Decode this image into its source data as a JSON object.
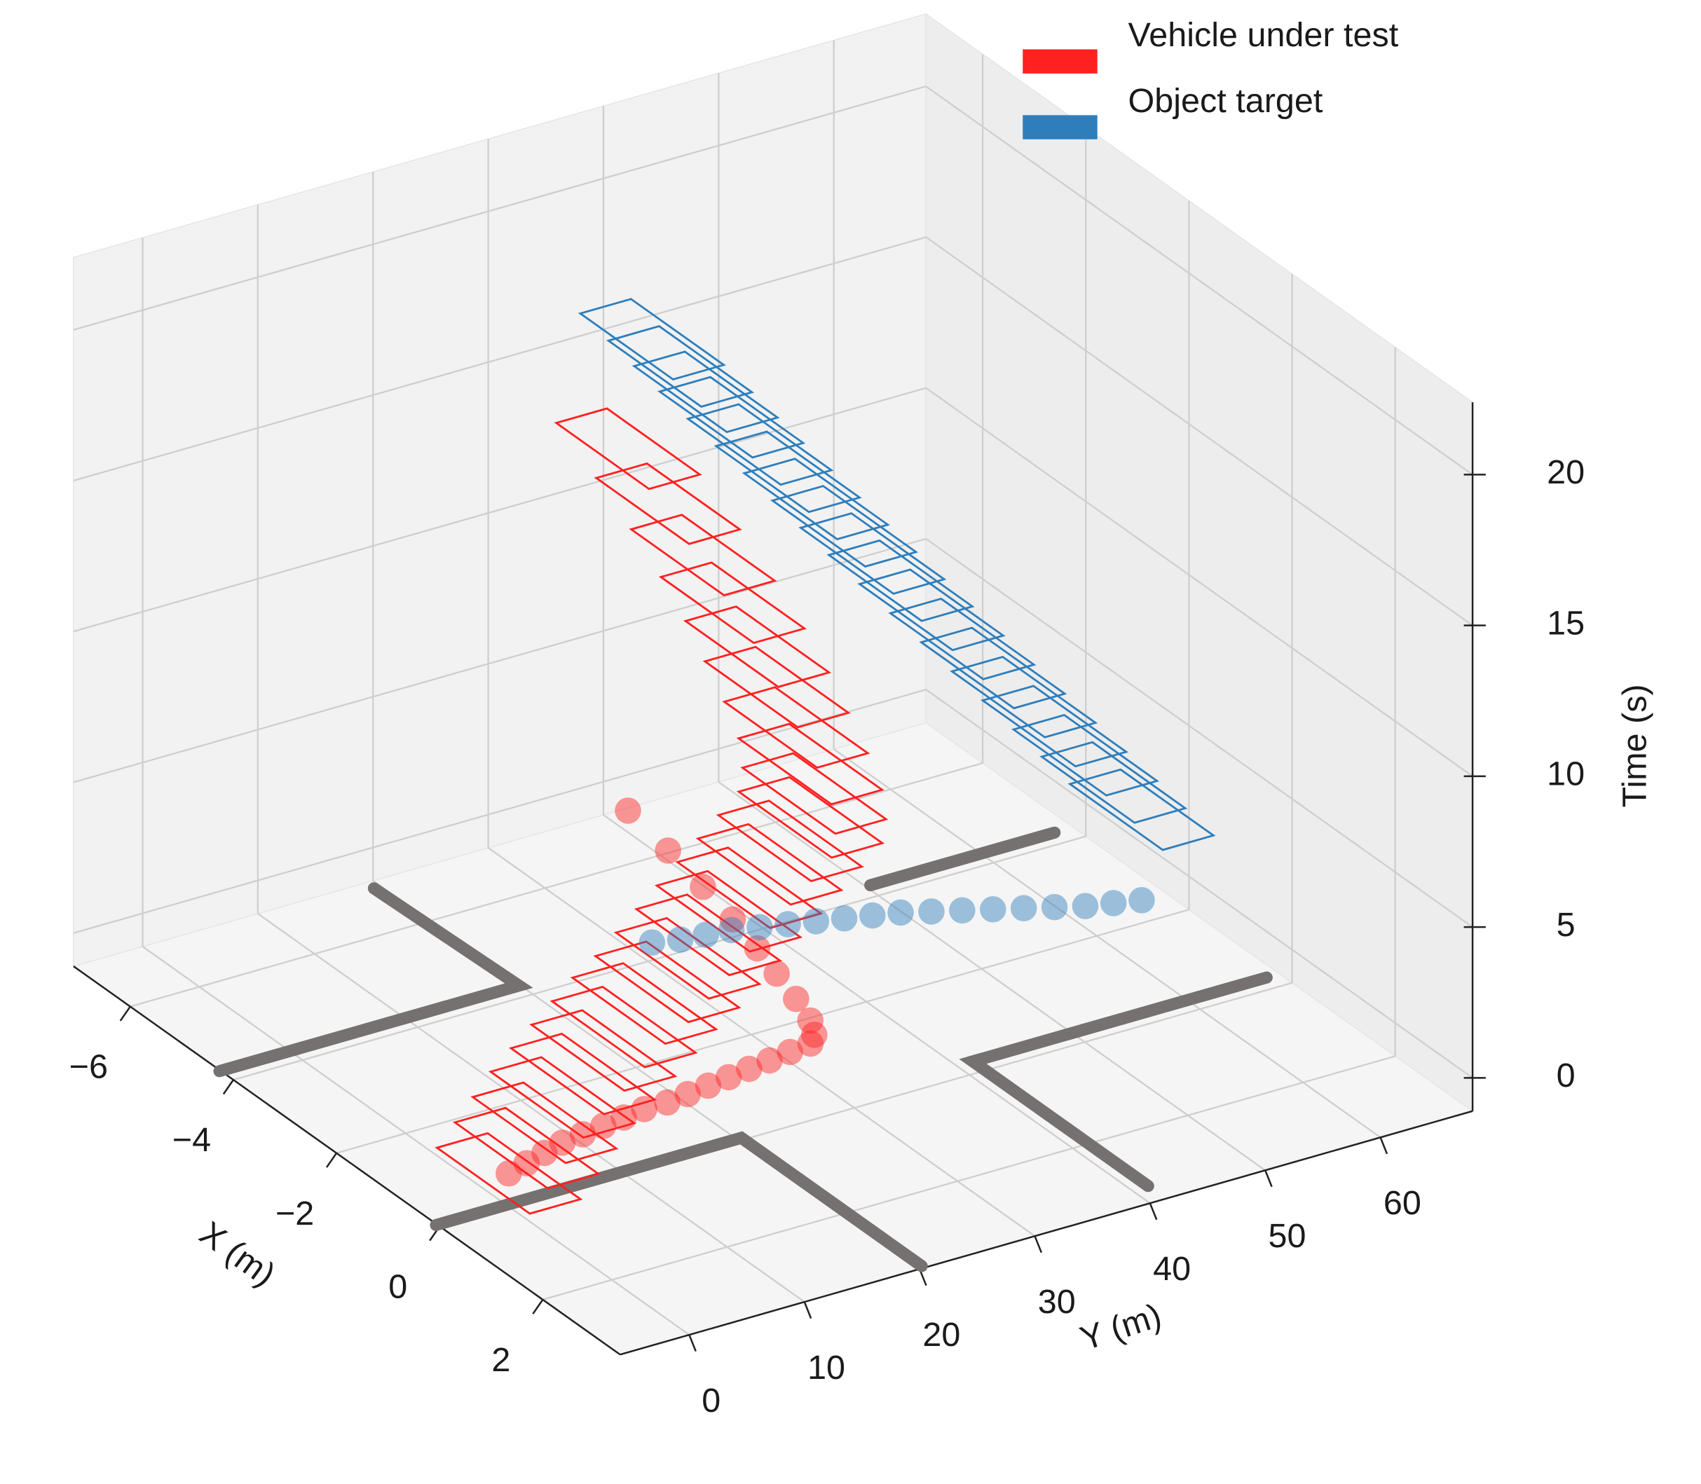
{
  "chart_data": {
    "type": "scatter3d",
    "xlabel": "X (m)",
    "ylabel": "Y (m)",
    "zlabel": "Time (s)",
    "xlim": [
      -7.1,
      3.5
    ],
    "ylim": [
      -6,
      68
    ],
    "zlim": [
      -1.1,
      22.4
    ],
    "xticks": [
      {
        "value": -6,
        "label": "−6"
      },
      {
        "value": -4,
        "label": "−4"
      },
      {
        "value": -2,
        "label": "−2"
      },
      0,
      2
    ],
    "yticks": [
      0,
      10,
      20,
      30,
      40,
      50,
      60
    ],
    "zticks": [
      0,
      5,
      10,
      15,
      20
    ],
    "grid": true,
    "legend": "upper right",
    "series": [
      {
        "name": "Vehicle under test",
        "color": "#ff2020",
        "x": [
          0,
          -0.1,
          -0.2,
          -0.3,
          -0.35,
          -0.4,
          -0.45,
          -0.5,
          -0.5,
          -0.55,
          -0.6,
          -0.65,
          -0.7,
          -0.75,
          -0.8,
          -0.85,
          -1.0,
          -1.3,
          -1.8,
          -2.4,
          -3.0,
          -3.7,
          -4.5,
          -5.4,
          -6.4
        ],
        "y": [
          0,
          2,
          4,
          6,
          8,
          10,
          12,
          14,
          16,
          18,
          20,
          22,
          24,
          26,
          28,
          30,
          31,
          32,
          33,
          34,
          35,
          36,
          37,
          38,
          39
        ],
        "t": [
          0,
          0.5,
          1,
          1.5,
          2,
          2.5,
          3,
          3.5,
          4,
          4.5,
          5,
          5.5,
          6,
          6.5,
          7,
          7.5,
          8,
          8.5,
          9,
          9.5,
          10,
          10.5,
          11,
          11.5,
          12
        ]
      },
      {
        "name": "Object target",
        "color": "#2e7ebc",
        "x": [
          -1.8,
          -1.9,
          -2.0,
          -2.15,
          -2.3,
          -2.45,
          -2.6,
          -2.75,
          -2.9,
          -3.0,
          -3.1,
          -3.2,
          -3.3,
          -3.4,
          -3.5,
          -3.55,
          -3.6,
          -3.7
        ],
        "y": [
          63,
          61,
          59,
          57,
          55,
          53,
          51,
          49,
          47,
          45,
          43,
          41,
          39,
          37,
          35,
          33,
          31,
          29
        ],
        "t": [
          3,
          4,
          5,
          6,
          7,
          8,
          9,
          10,
          11,
          12,
          13,
          14,
          15,
          16,
          17,
          18,
          19,
          20
        ]
      }
    ],
    "road_lines": {
      "color": "#767171",
      "lines": [
        {
          "x": [
            -6.3,
            -3.6,
            -3.6
          ],
          "y": [
            16.5,
            17,
            -9
          ]
        },
        {
          "x": [
            0.6,
            0.6,
            4.1
          ],
          "y": [
            -9,
            17.5,
            17.5
          ]
        },
        {
          "x": [
            0.4,
            0.4,
            3.8
          ],
          "y": [
            64,
            38.5,
            38.5
          ]
        },
        {
          "x": [
            -3.6,
            -3.6
          ],
          "y": [
            63.5,
            47.5
          ]
        }
      ]
    }
  }
}
